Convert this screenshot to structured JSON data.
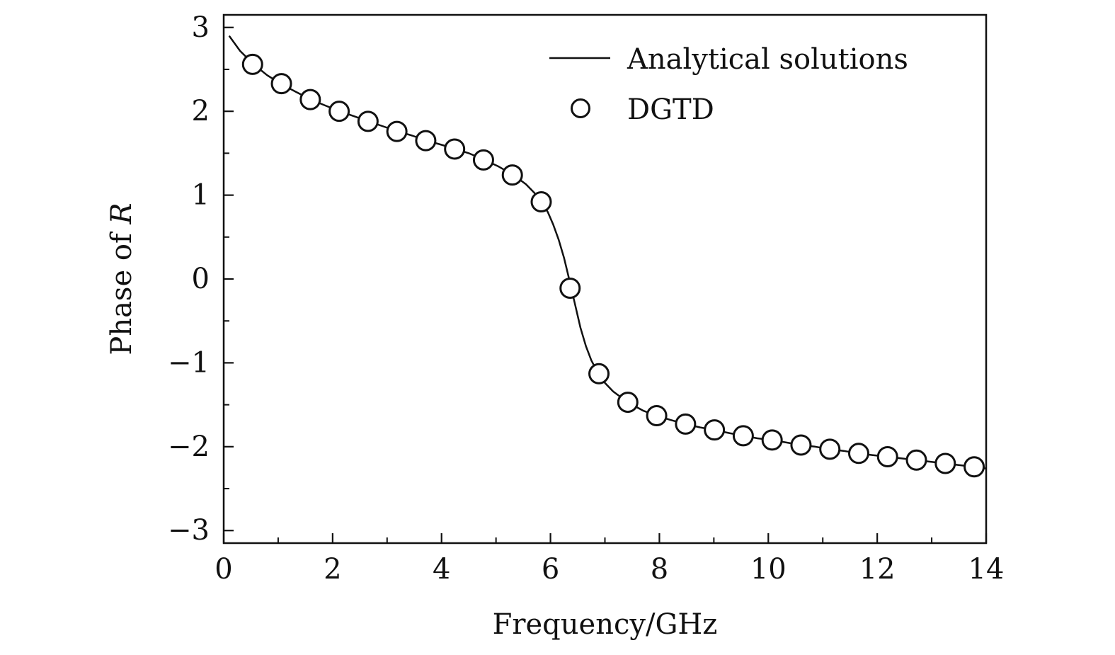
{
  "chart_data": {
    "type": "line",
    "xlabel": "Frequency/GHz",
    "ylabel_prefix": "Phase of ",
    "ylabel_symbol": "R",
    "xlim": [
      0,
      14
    ],
    "ylim": [
      -3.15,
      3.15
    ],
    "x_ticks": [
      0,
      2,
      4,
      6,
      8,
      10,
      12,
      14
    ],
    "x_tick_labels": [
      "0",
      "2",
      "4",
      "6",
      "8",
      "10",
      "12",
      "14"
    ],
    "x_minor_ticks": [
      1,
      3,
      5,
      7,
      9,
      11,
      13
    ],
    "y_ticks": [
      -3,
      -2,
      -1,
      0,
      1,
      2,
      3
    ],
    "y_tick_labels": [
      "−3",
      "−2",
      "−1",
      "0",
      "1",
      "2",
      "3"
    ],
    "y_minor_ticks": [
      -2.5,
      -1.5,
      -0.5,
      0.5,
      1.5,
      2.5
    ],
    "grid": false,
    "legend_position": "top-right",
    "series": [
      {
        "name": "Analytical solutions",
        "style": "line",
        "color": "#111111",
        "x": [
          0.1,
          0.3,
          0.55,
          0.8,
          1.07,
          1.33,
          1.6,
          1.86,
          2.13,
          2.4,
          2.66,
          2.93,
          3.2,
          3.46,
          3.73,
          4.0,
          4.26,
          4.5,
          4.79,
          5.05,
          5.32,
          5.55,
          5.7,
          5.85,
          5.95,
          6.05,
          6.15,
          6.25,
          6.35,
          6.45,
          6.55,
          6.65,
          6.75,
          6.88,
          7.0,
          7.15,
          7.42,
          7.7,
          7.95,
          8.2,
          8.48,
          8.75,
          9.0,
          9.3,
          9.55,
          9.8,
          10.06,
          10.33,
          10.6,
          10.86,
          11.12,
          11.38,
          11.65,
          11.92,
          12.19,
          12.45,
          12.72,
          12.98,
          13.25,
          13.51,
          13.78,
          14.0
        ],
        "y": [
          2.9,
          2.72,
          2.56,
          2.43,
          2.32,
          2.23,
          2.14,
          2.07,
          2.0,
          1.94,
          1.88,
          1.82,
          1.76,
          1.71,
          1.65,
          1.6,
          1.55,
          1.5,
          1.42,
          1.34,
          1.24,
          1.13,
          1.03,
          0.9,
          0.8,
          0.65,
          0.47,
          0.25,
          -0.02,
          -0.3,
          -0.58,
          -0.8,
          -0.97,
          -1.13,
          -1.24,
          -1.34,
          -1.47,
          -1.57,
          -1.63,
          -1.68,
          -1.73,
          -1.77,
          -1.8,
          -1.84,
          -1.87,
          -1.9,
          -1.92,
          -1.95,
          -1.98,
          -2.0,
          -2.03,
          -2.05,
          -2.08,
          -2.1,
          -2.12,
          -2.14,
          -2.16,
          -2.18,
          -2.2,
          -2.22,
          -2.24,
          -2.26
        ]
      },
      {
        "name": "DGTD",
        "style": "marker",
        "marker": "open-circle",
        "color": "#111111",
        "x": [
          0.53,
          1.06,
          1.59,
          2.12,
          2.65,
          3.18,
          3.71,
          4.24,
          4.77,
          5.3,
          5.83,
          6.36,
          6.89,
          7.42,
          7.95,
          8.48,
          9.01,
          9.54,
          10.07,
          10.6,
          11.13,
          11.66,
          12.19,
          12.72,
          13.25,
          13.78
        ],
        "y": [
          2.56,
          2.33,
          2.14,
          2.0,
          1.88,
          1.76,
          1.65,
          1.55,
          1.42,
          1.24,
          0.92,
          -0.11,
          -1.13,
          -1.47,
          -1.63,
          -1.73,
          -1.8,
          -1.87,
          -1.92,
          -1.98,
          -2.03,
          -2.08,
          -2.12,
          -2.16,
          -2.2,
          -2.24
        ]
      }
    ]
  }
}
